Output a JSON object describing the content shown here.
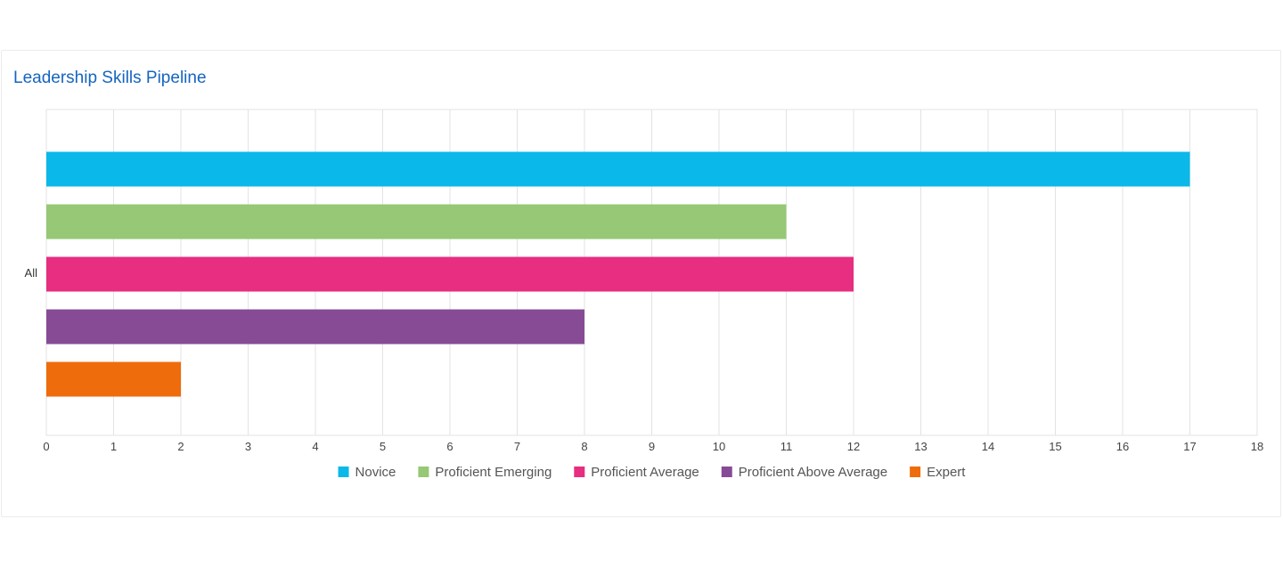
{
  "chart_data": {
    "type": "bar",
    "orientation": "horizontal",
    "title": "Leadership Skills Pipeline",
    "categories": [
      "All"
    ],
    "series": [
      {
        "name": "Novice",
        "values": [
          17
        ],
        "color": "#0bb8ea"
      },
      {
        "name": "Proficient Emerging",
        "values": [
          11
        ],
        "color": "#96c875"
      },
      {
        "name": "Proficient Average",
        "values": [
          12
        ],
        "color": "#e72e80"
      },
      {
        "name": "Proficient Above Average",
        "values": [
          8
        ],
        "color": "#874b96"
      },
      {
        "name": "Expert",
        "values": [
          2
        ],
        "color": "#ee6c0c"
      }
    ],
    "xlim": [
      0,
      18
    ],
    "xticks": [
      "0",
      "1",
      "2",
      "3",
      "4",
      "5",
      "6",
      "7",
      "8",
      "9",
      "10",
      "11",
      "12",
      "13",
      "14",
      "15",
      "16",
      "17",
      "18"
    ],
    "xlabel": "",
    "ylabel": "",
    "grid": true,
    "legend_position": "bottom"
  }
}
